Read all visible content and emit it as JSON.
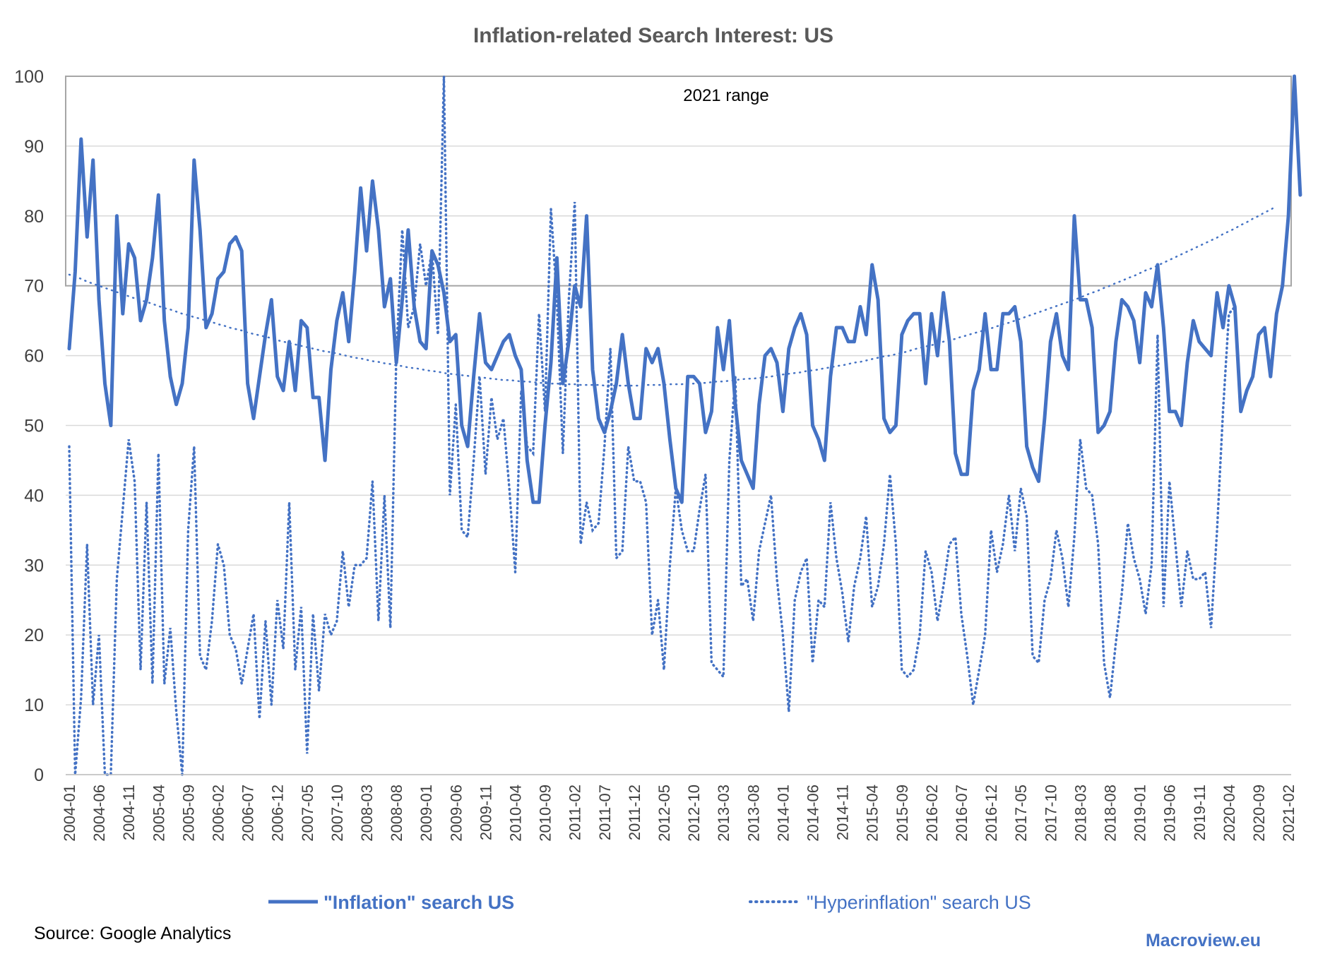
{
  "chart_data": {
    "type": "line",
    "title": "Inflation-related Search Interest: US",
    "xlabel": "",
    "ylabel": "",
    "ylim": [
      0,
      100
    ],
    "yticks": [
      0,
      10,
      20,
      30,
      40,
      50,
      60,
      70,
      80,
      90,
      100
    ],
    "x_start": "2004-01",
    "x_tick_labels": [
      "2004-01",
      "2004-06",
      "2004-11",
      "2005-04",
      "2005-09",
      "2006-02",
      "2006-07",
      "2006-12",
      "2007-05",
      "2007-10",
      "2008-03",
      "2008-08",
      "2009-01",
      "2009-06",
      "2009-11",
      "2010-04",
      "2010-09",
      "2011-02",
      "2011-07",
      "2011-12",
      "2012-05",
      "2012-10",
      "2013-03",
      "2013-08",
      "2014-01",
      "2014-06",
      "2014-11",
      "2015-04",
      "2015-09",
      "2016-02",
      "2016-07",
      "2016-12",
      "2017-05",
      "2017-10",
      "2018-03",
      "2018-08",
      "2019-01",
      "2019-06",
      "2019-11",
      "2020-04",
      "2020-09",
      "2021-02"
    ],
    "series": [
      {
        "name": "\"Inflation\" search US",
        "style": "solid",
        "color": "#4472C4",
        "values": [
          61,
          72,
          91,
          77,
          88,
          68,
          56,
          50,
          80,
          66,
          76,
          74,
          65,
          68,
          74,
          83,
          65,
          57,
          53,
          56,
          64,
          88,
          78,
          64,
          66,
          71,
          72,
          76,
          77,
          75,
          56,
          51,
          57,
          63,
          68,
          57,
          55,
          62,
          55,
          65,
          64,
          54,
          54,
          45,
          58,
          65,
          69,
          62,
          72,
          84,
          75,
          85,
          78,
          67,
          71,
          59,
          68,
          78,
          67,
          62,
          61,
          75,
          73,
          69,
          62,
          63,
          50,
          47,
          57,
          66,
          59,
          58,
          60,
          62,
          63,
          60,
          58,
          45,
          39,
          39,
          50,
          59,
          74,
          56,
          62,
          70,
          67,
          80,
          58,
          51,
          49,
          52,
          56,
          63,
          56,
          51,
          51,
          61,
          59,
          61,
          56,
          48,
          41,
          39,
          57,
          57,
          56,
          49,
          52,
          64,
          58,
          65,
          53,
          45,
          43,
          41,
          53,
          60,
          61,
          59,
          52,
          61,
          64,
          66,
          63,
          50,
          48,
          45,
          57,
          64,
          64,
          62,
          62,
          67,
          63,
          73,
          68,
          51,
          49,
          50,
          63,
          65,
          66,
          66,
          56,
          66,
          60,
          69,
          62,
          46,
          43,
          43,
          55,
          58,
          66,
          58,
          58,
          66,
          66,
          67,
          62,
          47,
          44,
          42,
          51,
          62,
          66,
          60,
          58,
          80,
          68,
          68,
          64,
          49,
          50,
          52,
          62,
          68,
          67,
          65,
          59,
          69,
          67,
          73,
          64,
          52,
          52,
          50,
          59,
          65,
          62,
          61,
          60,
          69,
          64,
          70,
          67,
          52,
          55,
          57,
          63,
          64,
          57,
          66,
          70,
          80,
          100,
          83
        ]
      },
      {
        "name": "\"Hyperinflation\" search US",
        "style": "dotted",
        "color": "#4472C4",
        "values": [
          47,
          0,
          11,
          33,
          10,
          20,
          0,
          0,
          28,
          38,
          48,
          42,
          15,
          39,
          13,
          46,
          13,
          21,
          9,
          0,
          35,
          47,
          17,
          15,
          22,
          33,
          30,
          20,
          18,
          13,
          18,
          23,
          8,
          22,
          10,
          25,
          18,
          39,
          15,
          24,
          3,
          23,
          12,
          23,
          20,
          22,
          32,
          24,
          30,
          30,
          31,
          42,
          22,
          40,
          21,
          60,
          78,
          64,
          67,
          76,
          70,
          75,
          63,
          100,
          40,
          53,
          35,
          34,
          45,
          57,
          43,
          54,
          48,
          51,
          41,
          29,
          55,
          47,
          46,
          66,
          52,
          81,
          68,
          46,
          68,
          82,
          33,
          39,
          35,
          36,
          47,
          61,
          31,
          32,
          47,
          42,
          42,
          39,
          20,
          25,
          15,
          30,
          41,
          35,
          32,
          32,
          38,
          43,
          16,
          15,
          14,
          45,
          57,
          27,
          28,
          22,
          32,
          36,
          40,
          28,
          20,
          9,
          25,
          29,
          31,
          16,
          25,
          24,
          39,
          31,
          26,
          19,
          27,
          31,
          37,
          24,
          27,
          33,
          43,
          33,
          15,
          14,
          15,
          20,
          32,
          29,
          22,
          27,
          33,
          34,
          23,
          17,
          10,
          15,
          20,
          35,
          29,
          33,
          40,
          32,
          41,
          37,
          17,
          16,
          25,
          28,
          35,
          31,
          24,
          34,
          48,
          41,
          40,
          33,
          16,
          11,
          19,
          26,
          36,
          31,
          28,
          23,
          30,
          63,
          24,
          42,
          33,
          24,
          32,
          28,
          28,
          29,
          21,
          35,
          52,
          66,
          67
        ]
      },
      {
        "name": "",
        "style": "dotted-thin",
        "color": "#4472C4",
        "role": "trendline",
        "values": [
          71.6,
          71.3,
          71.0,
          70.6,
          70.3,
          70.0,
          69.7,
          69.4,
          69.1,
          68.8,
          68.5,
          68.2,
          67.9,
          67.7,
          67.4,
          67.1,
          66.8,
          66.6,
          66.3,
          66.0,
          65.8,
          65.5,
          65.3,
          65.0,
          64.8,
          64.5,
          64.3,
          64.0,
          63.8,
          63.6,
          63.3,
          63.1,
          62.9,
          62.7,
          62.5,
          62.2,
          62.0,
          61.8,
          61.6,
          61.4,
          61.2,
          61.0,
          60.8,
          60.6,
          60.5,
          60.3,
          60.1,
          59.9,
          59.7,
          59.6,
          59.4,
          59.2,
          59.1,
          58.9,
          58.8,
          58.6,
          58.5,
          58.3,
          58.2,
          58.1,
          57.9,
          57.8,
          57.7,
          57.5,
          57.4,
          57.3,
          57.2,
          57.1,
          57.0,
          56.9,
          56.8,
          56.7,
          56.6,
          56.5,
          56.5,
          56.4,
          56.3,
          56.3,
          56.2,
          56.1,
          56.1,
          56.0,
          56.0,
          55.9,
          55.9,
          55.9,
          55.8,
          55.8,
          55.8,
          55.8,
          55.7,
          55.7,
          55.7,
          55.7,
          55.7,
          55.7,
          55.7,
          55.8,
          55.8,
          55.8,
          55.8,
          55.9,
          55.9,
          55.9,
          56.0,
          56.0,
          56.1,
          56.1,
          56.2,
          56.3,
          56.3,
          56.4,
          56.5,
          56.6,
          56.7,
          56.7,
          56.8,
          56.9,
          57.0,
          57.2,
          57.3,
          57.4,
          57.5,
          57.6,
          57.8,
          57.9,
          58.0,
          58.2,
          58.3,
          58.5,
          58.6,
          58.8,
          59.0,
          59.1,
          59.3,
          59.5,
          59.7,
          59.9,
          60.0,
          60.2,
          60.4,
          60.6,
          60.9,
          61.1,
          61.3,
          61.5,
          61.7,
          62.0,
          62.2,
          62.4,
          62.7,
          62.9,
          63.2,
          63.4,
          63.7,
          63.9,
          64.2,
          64.5,
          64.7,
          65.0,
          65.3,
          65.6,
          65.9,
          66.2,
          66.5,
          66.8,
          67.1,
          67.4,
          67.7,
          68.0,
          68.3,
          68.7,
          69.0,
          69.3,
          69.7,
          70.0,
          70.4,
          70.7,
          71.1,
          71.4,
          71.8,
          72.2,
          72.5,
          72.9,
          73.3,
          73.7,
          74.1,
          74.5,
          74.9,
          75.3,
          75.7,
          76.1,
          76.5,
          76.9,
          77.4,
          77.8,
          78.2,
          78.7,
          79.1,
          79.6,
          80.0,
          80.5,
          80.9,
          81.4
        ]
      }
    ],
    "annotations": [
      {
        "text": "2021 range",
        "y_range": [
          70,
          100
        ]
      }
    ],
    "legend": {
      "placement": "bottom",
      "entries": [
        "\"Inflation\" search US",
        "\"Hyperinflation\" search US"
      ]
    },
    "grid": {
      "horizontal": true,
      "vertical": false
    }
  },
  "footer": {
    "source": "Source: Google Analytics",
    "brand": "Macroview.eu"
  },
  "colors": {
    "series": "#4472C4",
    "grid": "#D9D9D9",
    "axis_text": "#404040",
    "title": "#595959",
    "box": "#A6A6A6"
  }
}
